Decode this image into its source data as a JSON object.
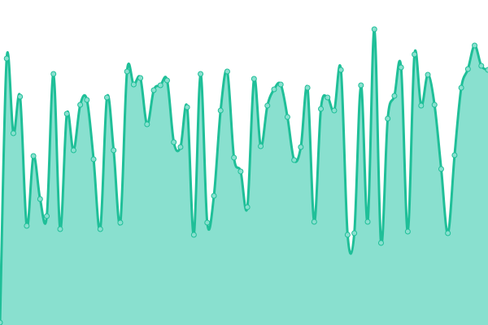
{
  "chart_data": {
    "type": "area",
    "title": "",
    "xlabel": "",
    "ylabel": "",
    "axes_visible": false,
    "grid": false,
    "legend": "none",
    "smooth": true,
    "markers": true,
    "ylim": [
      0,
      400
    ],
    "colors": {
      "line": "#1fbf98",
      "fill": "#89e0cf",
      "marker_fill": "#89e0cf",
      "marker_stroke": "#1fbf98"
    },
    "values": [
      3,
      328,
      236,
      281,
      122,
      208,
      155,
      134,
      309,
      118,
      260,
      215,
      271,
      277,
      204,
      118,
      280,
      215,
      126,
      312,
      296,
      304,
      247,
      289,
      295,
      301,
      225,
      219,
      268,
      111,
      309,
      126,
      159,
      264,
      312,
      206,
      189,
      145,
      303,
      220,
      270,
      290,
      296,
      256,
      203,
      219,
      292,
      127,
      266,
      280,
      264,
      314,
      111,
      113,
      295,
      127,
      364,
      101,
      254,
      282,
      317,
      115,
      333,
      270,
      308,
      271,
      192,
      113,
      209,
      292,
      315,
      344,
      319,
      314
    ]
  }
}
